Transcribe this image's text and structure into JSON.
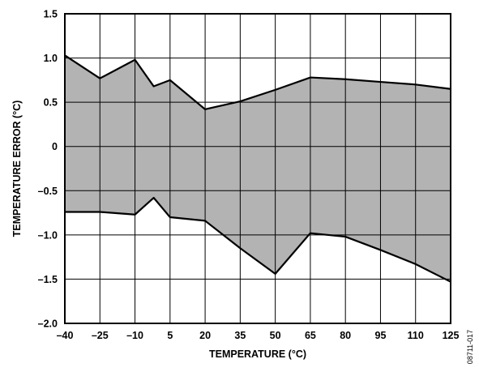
{
  "chart_data": {
    "type": "area",
    "title": "",
    "xlabel": "TEMPERATURE (°C)",
    "ylabel": "TEMPERATURE ERROR (°C)",
    "xlim": [
      -40,
      125
    ],
    "ylim": [
      -2.0,
      1.5
    ],
    "x_ticks": [
      -40,
      -25,
      -10,
      5,
      20,
      35,
      50,
      65,
      80,
      95,
      110,
      125
    ],
    "x_tick_labels": [
      "–40",
      "–25",
      "–10",
      "5",
      "20",
      "35",
      "50",
      "65",
      "80",
      "95",
      "110",
      "125"
    ],
    "y_ticks": [
      1.5,
      1.0,
      0.5,
      0,
      -0.5,
      -1.0,
      -1.5,
      -2.0
    ],
    "y_tick_labels": [
      "1.5",
      "1.0",
      "0.5",
      "0",
      "–0.5",
      "–1.0",
      "–1.5",
      "–2.0"
    ],
    "grid": true,
    "colors": {
      "fill": "#b3b3b3",
      "line": "#000000",
      "grid": "#000000"
    },
    "series": [
      {
        "role": "upper",
        "x": [
          -40,
          -25,
          -10,
          -2,
          5,
          20,
          35,
          50,
          65,
          80,
          95,
          110,
          125
        ],
        "values": [
          1.03,
          0.77,
          0.98,
          0.68,
          0.75,
          0.42,
          0.51,
          0.64,
          0.78,
          0.76,
          0.73,
          0.7,
          0.65
        ]
      },
      {
        "role": "lower",
        "x": [
          -40,
          -25,
          -10,
          -2,
          5,
          20,
          35,
          50,
          65,
          80,
          95,
          110,
          125
        ],
        "values": [
          -0.74,
          -0.74,
          -0.77,
          -0.58,
          -0.8,
          -0.84,
          -1.15,
          -1.44,
          -0.98,
          -1.02,
          -1.17,
          -1.33,
          -1.53
        ]
      }
    ],
    "figure_id": "08711-017"
  }
}
